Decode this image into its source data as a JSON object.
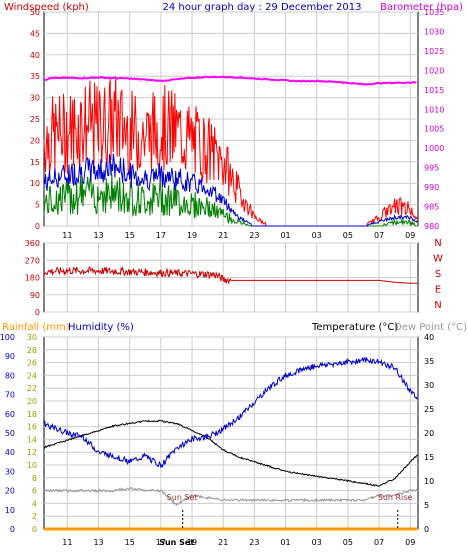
{
  "title": "24 hour graph day : 29 December 2013",
  "colors": {
    "wind": "#ff0000",
    "gust_dark": "#cc0000",
    "avg": "#0000cc",
    "green": "#008000",
    "baro": "#ff00ff",
    "rain": "#ff9900",
    "humidity": "#0000cc",
    "temp": "#000000",
    "dew": "#999999",
    "axis_yellow": "#a0a000",
    "grid": "#cccccc"
  },
  "x_ticks": [
    "11",
    "13",
    "15",
    "17",
    "19",
    "21",
    "23",
    "01",
    "03",
    "05",
    "07",
    "09"
  ],
  "x_ticks_bottom": [
    "11",
    "13",
    "15",
    "17",
    "Sun Set",
    "19",
    "21",
    "23",
    "01",
    "03",
    "05",
    "07",
    "09"
  ],
  "chart_data": [
    {
      "type": "line",
      "name": "wind-barometer-panel",
      "ylabel_left": "Windspeed (kph)",
      "ylabel_right": "Barometer (hpa)",
      "left_ticks": [
        "50",
        "45",
        "40",
        "35",
        "30",
        "25",
        "20",
        "15",
        "10",
        "5",
        "0"
      ],
      "right_ticks": [
        "1035",
        "1030",
        "1025",
        "1020",
        "1015",
        "1010",
        "1005",
        "1000",
        "995",
        "990",
        "985",
        "980"
      ],
      "ylim_left": [
        0,
        50
      ],
      "ylim_right": [
        980,
        1035
      ],
      "x_hours": [
        9.5,
        10,
        11,
        12,
        13,
        14,
        15,
        16,
        17,
        18,
        19,
        20,
        21,
        22,
        23,
        24,
        25,
        26,
        27,
        28,
        29,
        30,
        31,
        32,
        33,
        33.5
      ],
      "series": [
        {
          "key": "gust",
          "values": [
            20,
            21,
            22,
            24,
            23,
            25,
            22,
            21,
            23,
            22,
            20,
            18,
            15,
            8,
            2,
            0,
            0,
            0,
            0,
            0,
            0,
            0,
            2,
            5,
            4,
            2
          ]
        },
        {
          "key": "avg",
          "values": [
            10,
            11,
            12,
            13,
            13,
            14,
            12,
            11,
            12,
            11,
            10,
            9,
            6,
            2,
            0,
            0,
            0,
            0,
            0,
            0,
            0,
            0,
            1,
            2,
            2,
            1
          ]
        },
        {
          "key": "green",
          "values": [
            6,
            7,
            8,
            9,
            9,
            9,
            8,
            7,
            8,
            7,
            6,
            5,
            3,
            1,
            0,
            0,
            0,
            0,
            0,
            0,
            0,
            0,
            0,
            1,
            1,
            0
          ]
        },
        {
          "key": "barometer",
          "values": [
            1017.5,
            1018,
            1018.1,
            1018,
            1018.2,
            1018,
            1017.9,
            1017.6,
            1017.3,
            1017.7,
            1018.1,
            1018.3,
            1018.3,
            1018.2,
            1017.9,
            1017.7,
            1017.4,
            1017.2,
            1017.3,
            1017.1,
            1016.8,
            1016.4,
            1016.7,
            1016.8,
            1016.9,
            1016.9
          ]
        }
      ]
    },
    {
      "type": "scatter",
      "name": "wind-direction-panel",
      "left_ticks": [
        "360",
        "270",
        "180",
        "90",
        "0"
      ],
      "right_labels": [
        "N",
        "W",
        "S",
        "E",
        "N"
      ],
      "ylim": [
        0,
        360
      ],
      "x_hours": [
        9.5,
        11,
        13,
        15,
        17,
        19,
        20.5,
        21,
        21.5,
        23,
        25,
        27,
        29,
        31,
        32,
        33,
        33.5
      ],
      "values": [
        210,
        215,
        215,
        210,
        205,
        200,
        195,
        170,
        165,
        165,
        165,
        165,
        165,
        165,
        155,
        150,
        150
      ]
    },
    {
      "type": "line",
      "name": "temperature-humidity-panel",
      "ylabel_rainfall": "Rainfall (mm)",
      "ylabel_humidity": "Humidity (%)",
      "ylabel_temp": "Temperature (°C)",
      "ylabel_dew": "Dew Point (°C)",
      "humidity_ticks": [
        "100",
        "90",
        "80",
        "70",
        "60",
        "50",
        "40",
        "30",
        "20",
        "10",
        "0"
      ],
      "rain_ticks": [
        "30",
        "28",
        "26",
        "24",
        "22",
        "20",
        "18",
        "16",
        "14",
        "12",
        "10",
        "8",
        "6",
        "4",
        "2",
        "0"
      ],
      "temp_ticks": [
        "40",
        "35",
        "30",
        "25",
        "20",
        "15",
        "10",
        "5",
        "0"
      ],
      "ylim_humidity": [
        0,
        100
      ],
      "ylim_temp": [
        0,
        40
      ],
      "annotations": [
        "Sun Set",
        "Sun Rise"
      ],
      "x_hours": [
        9.5,
        10,
        11,
        12,
        13,
        14,
        15,
        16,
        17,
        18,
        19,
        20,
        21,
        22,
        23,
        24,
        25,
        26,
        27,
        28,
        29,
        30,
        31,
        32,
        33,
        33.5
      ],
      "series": [
        {
          "key": "temperature",
          "values": [
            17,
            17.5,
            18.5,
            19.5,
            20.5,
            21.5,
            22,
            22.5,
            22.5,
            22,
            20.5,
            19,
            16.5,
            15,
            14,
            13,
            12,
            11.5,
            11,
            10.5,
            10,
            9.5,
            9,
            10.5,
            14,
            15.5
          ]
        },
        {
          "key": "humidity",
          "values": [
            55,
            53,
            50,
            48,
            40,
            38,
            35,
            38,
            33,
            42,
            47,
            48,
            52,
            58,
            66,
            74,
            80,
            83,
            85,
            86,
            87,
            88,
            87,
            84,
            72,
            67
          ]
        },
        {
          "key": "dewpoint",
          "values": [
            8,
            8,
            8,
            8,
            8,
            8,
            8.5,
            8,
            8,
            5,
            7,
            6.5,
            6,
            6,
            6,
            6,
            6,
            6,
            6,
            6,
            6,
            6,
            7,
            7,
            8,
            8
          ]
        },
        {
          "key": "rainfall",
          "values": [
            0,
            0,
            0,
            0,
            0,
            0,
            0,
            0,
            0,
            0,
            0,
            0,
            0,
            0,
            0,
            0,
            0,
            0,
            0,
            0,
            0,
            0,
            0,
            0,
            0,
            0
          ]
        }
      ]
    }
  ]
}
